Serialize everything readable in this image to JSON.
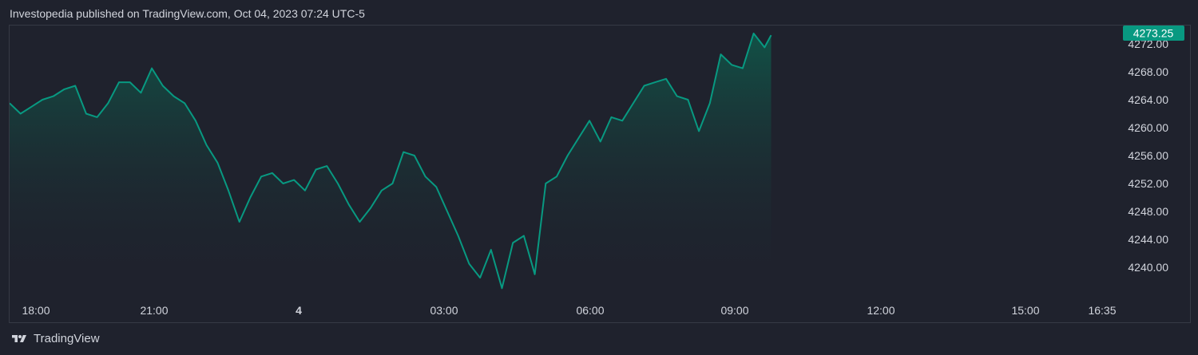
{
  "header": {
    "attribution": "Investopedia published on TradingView.com, Oct 04, 2023 07:24 UTC-5"
  },
  "footer": {
    "brand": "TradingView",
    "logo_icon": "tradingview-logo-icon"
  },
  "colors": {
    "background": "#1f222d",
    "line": "#089981",
    "fill_top": "#0f5a4b",
    "price_badge": "#089981",
    "axis_text": "#d1d4dc"
  },
  "chart_data": {
    "type": "area",
    "title": "",
    "xlabel": "",
    "ylabel": "",
    "ylim": [
      4236,
      4274.5
    ],
    "grid": false,
    "x_ticks": [
      "18:00",
      "21:00",
      "4",
      "03:00",
      "06:00",
      "09:00",
      "12:00",
      "15:00",
      "16:35"
    ],
    "y_ticks": [
      "4240.00",
      "4244.00",
      "4248.00",
      "4252.00",
      "4256.00",
      "4260.00",
      "4264.00",
      "4268.00",
      "4272.00"
    ],
    "last_price": "4273.25",
    "series": [
      {
        "points": [
          [
            "17:00",
            4263.5
          ],
          [
            "17:15",
            4262.0
          ],
          [
            "17:30",
            4263.0
          ],
          [
            "17:45",
            4264.0
          ],
          [
            "18:00",
            4264.5
          ],
          [
            "18:15",
            4265.5
          ],
          [
            "18:30",
            4266.0
          ],
          [
            "18:45",
            4262.0
          ],
          [
            "19:00",
            4261.5
          ],
          [
            "19:15",
            4263.5
          ],
          [
            "19:30",
            4266.5
          ],
          [
            "19:45",
            4266.5
          ],
          [
            "20:00",
            4265.0
          ],
          [
            "20:15",
            4268.5
          ],
          [
            "20:30",
            4266.0
          ],
          [
            "20:45",
            4264.5
          ],
          [
            "21:00",
            4263.5
          ],
          [
            "21:15",
            4261.0
          ],
          [
            "21:30",
            4257.5
          ],
          [
            "21:45",
            4255.0
          ],
          [
            "22:00",
            4251.0
          ],
          [
            "22:15",
            4246.5
          ],
          [
            "22:30",
            4250.0
          ],
          [
            "22:45",
            4253.0
          ],
          [
            "23:00",
            4253.5
          ],
          [
            "23:15",
            4252.0
          ],
          [
            "23:30",
            4252.5
          ],
          [
            "23:45",
            4251.0
          ],
          [
            "00:00",
            4254.0
          ],
          [
            "00:15",
            4254.5
          ],
          [
            "00:30",
            4252.0
          ],
          [
            "00:45",
            4249.0
          ],
          [
            "01:00",
            4246.5
          ],
          [
            "01:15",
            4248.5
          ],
          [
            "01:30",
            4251.0
          ],
          [
            "01:45",
            4252.0
          ],
          [
            "02:00",
            4256.5
          ],
          [
            "02:15",
            4256.0
          ],
          [
            "02:30",
            4253.0
          ],
          [
            "02:45",
            4251.5
          ],
          [
            "03:00",
            4248.0
          ],
          [
            "03:15",
            4244.5
          ],
          [
            "03:30",
            4240.5
          ],
          [
            "03:45",
            4238.5
          ],
          [
            "04:00",
            4242.5
          ],
          [
            "04:15",
            4237.0
          ],
          [
            "04:30",
            4243.5
          ],
          [
            "04:45",
            4244.5
          ],
          [
            "05:00",
            4239.0
          ],
          [
            "05:15",
            4252.0
          ],
          [
            "05:30",
            4253.0
          ],
          [
            "05:45",
            4256.0
          ],
          [
            "06:00",
            4258.5
          ],
          [
            "06:15",
            4261.0
          ],
          [
            "06:30",
            4258.0
          ],
          [
            "06:45",
            4261.5
          ],
          [
            "07:00",
            4261.0
          ],
          [
            "07:15",
            4263.5
          ],
          [
            "07:30",
            4266.0
          ],
          [
            "07:45",
            4266.5
          ],
          [
            "08:00",
            4267.0
          ],
          [
            "08:15",
            4264.5
          ],
          [
            "08:30",
            4264.0
          ],
          [
            "08:45",
            4259.5
          ],
          [
            "09:00",
            4263.5
          ],
          [
            "09:15",
            4270.5
          ],
          [
            "09:30",
            4269.0
          ],
          [
            "09:45",
            4268.5
          ],
          [
            "10:00",
            4273.5
          ],
          [
            "10:15",
            4271.5
          ],
          [
            "10:24",
            4273.25
          ]
        ]
      }
    ]
  }
}
